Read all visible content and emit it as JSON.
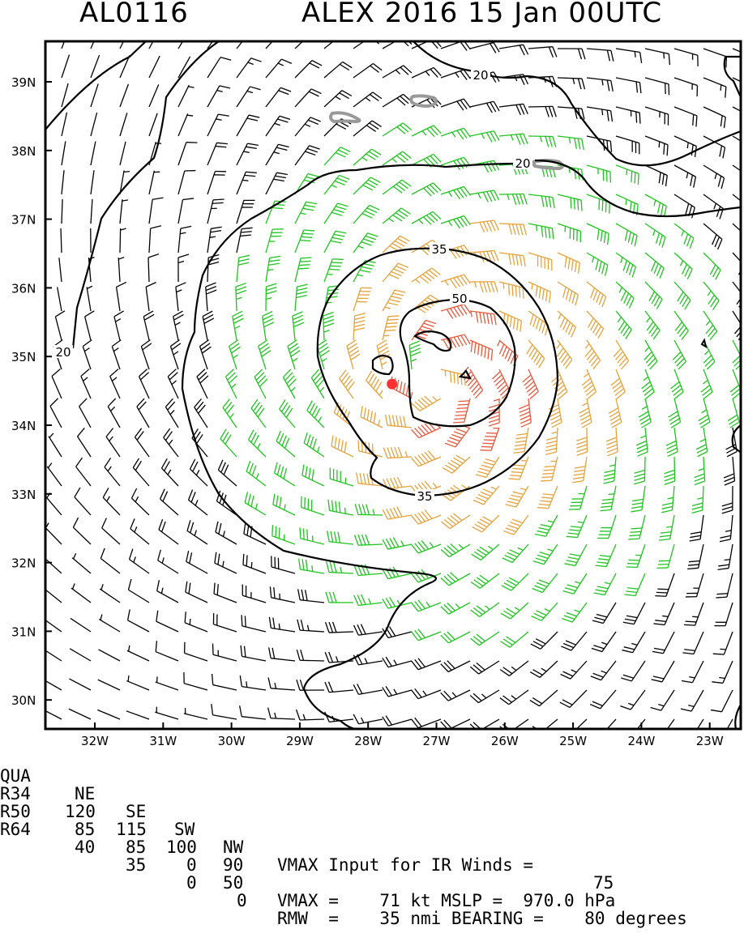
{
  "header": {
    "storm_id": "AL0116",
    "title": "ALEX 2016 15 Jan 00UTC"
  },
  "map": {
    "lat_labels": [
      "39N",
      "38N",
      "37N",
      "36N",
      "35N",
      "34N",
      "33N",
      "32N",
      "31N",
      "30N"
    ],
    "lon_labels": [
      "32W",
      "31W",
      "30W",
      "29W",
      "28W",
      "27W",
      "26W",
      "25W",
      "24W",
      "23W"
    ],
    "contour_labels": [
      "20",
      "20",
      "20",
      "35",
      "35",
      "50"
    ],
    "storm_center": {
      "lat": 34.6,
      "lon": -27.65
    },
    "colors": {
      "barb_low": "#000000",
      "barb_34kt": "#1fc51f",
      "barb_50kt": "#e8a23c",
      "barb_64kt": "#e8583c",
      "contour": "#000000",
      "land": "#999999",
      "center_marker": "#ff3333"
    }
  },
  "footer": {
    "quadrant_header": [
      "QUA",
      "NE",
      "SE",
      "SW",
      "NW"
    ],
    "r34": [
      "R34",
      "120",
      "115",
      "100",
      "90"
    ],
    "r50": [
      "R50",
      "85",
      "85",
      "0",
      "50"
    ],
    "r64": [
      "R64",
      "40",
      "35",
      "0",
      "0"
    ],
    "vmax_input_label": "VMAX Input for IR Winds =",
    "vmax_input_value": "75",
    "vmax_line": "VMAX =    71 kt MSLP =  970.0 hPa",
    "rmw_line": "RMW  =    35 nmi BEARING =    80 degrees"
  }
}
